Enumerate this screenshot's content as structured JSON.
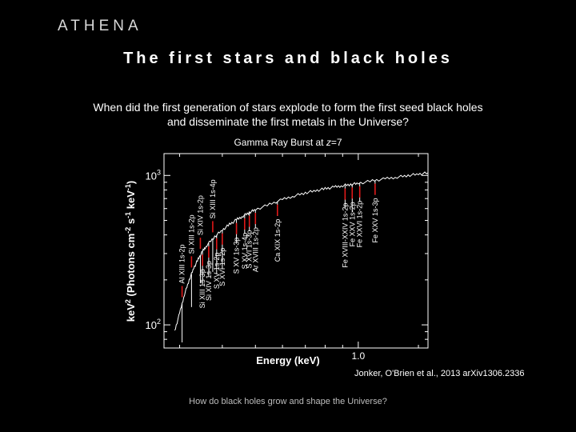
{
  "header": {
    "brand": "ATHENA",
    "title": "The first stars and black holes"
  },
  "question": {
    "line1": "When did the first generation of stars explode to form the first seed black holes",
    "line2": "and disseminate the first metals in the Universe?"
  },
  "figure": {
    "caption_prefix": "Gamma Ray Burst at ",
    "caption_var": "z",
    "caption_suffix": "=7",
    "citation": "Jonker, O'Brien et al., 2013 arXiv1306.2336"
  },
  "footer": {
    "text": "How do black holes grow and shape the Universe?"
  },
  "chart_data": {
    "type": "line",
    "xlabel": "Energy (keV)",
    "ylabel_parts": [
      "keV",
      "2",
      " (Photons cm",
      "-2",
      " s",
      "-1",
      " keV",
      "-1",
      ")"
    ],
    "x_scale": "log",
    "y_scale": "log",
    "xlim": [
      0.27,
      1.6
    ],
    "ylim": [
      70,
      1400
    ],
    "x_ticks": [
      {
        "value": 1.0,
        "label": "1.0"
      }
    ],
    "y_ticks": [
      {
        "value": 100,
        "label": "10",
        "sup": "2"
      },
      {
        "value": 1000,
        "label": "10",
        "sup": "3"
      }
    ],
    "grid": false,
    "series": [
      {
        "color": "#ffffff",
        "x": [
          0.29,
          0.3,
          0.31,
          0.32,
          0.33,
          0.34,
          0.35,
          0.36,
          0.38,
          0.4,
          0.42,
          0.44,
          0.46,
          0.48,
          0.5,
          0.55,
          0.6,
          0.65,
          0.7,
          0.75,
          0.8,
          0.85,
          0.9,
          0.95,
          1.0,
          1.1,
          1.2,
          1.3,
          1.4,
          1.5,
          1.6
        ],
        "y": [
          90,
          120,
          160,
          200,
          240,
          275,
          310,
          340,
          390,
          430,
          470,
          505,
          535,
          565,
          590,
          640,
          690,
          730,
          765,
          790,
          815,
          835,
          855,
          870,
          885,
          920,
          950,
          975,
          1000,
          1020,
          1040
        ]
      }
    ],
    "absorption_lines": [
      {
        "label": "Al XIII 1s-2p",
        "energy": 0.305,
        "depth": 0.55,
        "label_side": "upper"
      },
      {
        "label": "Si XIII 1s-2p",
        "energy": 0.325,
        "depth": 0.6,
        "label_side": "upper"
      },
      {
        "label": "Si XIV 1s-2p",
        "energy": 0.345,
        "depth": 0.65,
        "label_side": "upper"
      },
      {
        "label": "Si XIII 1s-4p",
        "energy": 0.375,
        "depth": 0.6,
        "label_side": "upper"
      },
      {
        "label": "Si XIII 1s-3p",
        "energy": 0.35,
        "depth": 0.6,
        "label_side": "lower"
      },
      {
        "label": "Si XIV 1s-3p",
        "energy": 0.365,
        "depth": 0.6,
        "label_side": "lower"
      },
      {
        "label": "S XV 1s-2p",
        "energy": 0.385,
        "depth": 0.55,
        "label_side": "lower"
      },
      {
        "label": "S XVI 1s-2p",
        "energy": 0.4,
        "depth": 0.55,
        "label_side": "lower"
      },
      {
        "label": "S XV 1s-3p",
        "energy": 0.44,
        "depth": 0.7,
        "label_side": "lower"
      },
      {
        "label": "S XV 1s-4p",
        "energy": 0.465,
        "depth": 0.75,
        "label_side": "lower"
      },
      {
        "label": "S XVI 1s-3p",
        "energy": 0.48,
        "depth": 0.75,
        "label_side": "lower"
      },
      {
        "label": "Ar XVIII 1s-2p",
        "energy": 0.5,
        "depth": 0.75,
        "label_side": "lower"
      },
      {
        "label": "Ca XIX 1s-2p",
        "energy": 0.58,
        "depth": 0.8,
        "label_side": "lower"
      },
      {
        "label": "Fe XVIII-XXIV 1s-2p",
        "energy": 0.915,
        "depth": 0.7,
        "label_side": "lower"
      },
      {
        "label": "Fe XXV 1s-2p",
        "energy": 0.96,
        "depth": 0.65,
        "label_side": "lower"
      },
      {
        "label": "Fe XXVI 1s-2p",
        "energy": 1.01,
        "depth": 0.75,
        "label_side": "lower"
      },
      {
        "label": "Fe XXV 1s-3p",
        "energy": 1.12,
        "depth": 0.8,
        "label_side": "lower"
      }
    ]
  }
}
